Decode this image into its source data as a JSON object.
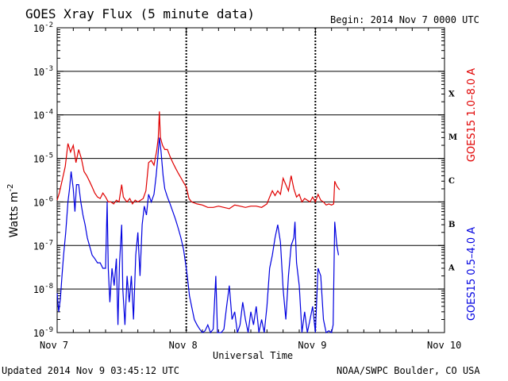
{
  "header": {
    "title": "GOES Xray Flux (5 minute data)",
    "begin": "Begin:  2014 Nov 7 0000 UTC"
  },
  "footer": {
    "updated": "Updated 2014 Nov  9 03:45:12 UTC",
    "credit": "NOAA/SWPC Boulder, CO USA"
  },
  "chart_data": {
    "type": "line",
    "title": "GOES Xray Flux (5 minute data)",
    "xlabel": "Universal Time",
    "ylabel": "Watts m^-2",
    "yscale": "log",
    "ylim": [
      1e-09,
      0.01
    ],
    "x_unit": "hours since 2014 Nov 7 0000 UTC",
    "xlim": [
      0,
      72
    ],
    "x_ticks": [
      "Nov 7",
      "Nov 8",
      "Nov 9",
      "Nov 10"
    ],
    "y_ticks": [
      "10^-9",
      "10^-8",
      "10^-7",
      "10^-6",
      "10^-5",
      "10^-4",
      "10^-3",
      "10^-2"
    ],
    "flare_classes": [
      "A",
      "B",
      "C",
      "M",
      "X"
    ],
    "grid": true,
    "series": [
      {
        "name": "GOES15 1.0–8.0 A",
        "color": "#e00000",
        "points": [
          [
            0.0,
            1.1e-06
          ],
          [
            0.4,
            1.6e-06
          ],
          [
            0.9,
            3e-06
          ],
          [
            1.5,
            6.5e-06
          ],
          [
            2.0,
            2.2e-05
          ],
          [
            2.5,
            1.4e-05
          ],
          [
            3.0,
            2e-05
          ],
          [
            3.5,
            8e-06
          ],
          [
            4.0,
            1.6e-05
          ],
          [
            4.5,
            1e-05
          ],
          [
            5.0,
            5e-06
          ],
          [
            5.5,
            4e-06
          ],
          [
            6.0,
            3e-06
          ],
          [
            6.5,
            2.2e-06
          ],
          [
            7.0,
            1.6e-06
          ],
          [
            7.5,
            1.3e-06
          ],
          [
            8.0,
            1.2e-06
          ],
          [
            8.5,
            1.6e-06
          ],
          [
            9.0,
            1.3e-06
          ],
          [
            9.5,
            1e-06
          ],
          [
            10.0,
            1e-06
          ],
          [
            10.5,
            9e-07
          ],
          [
            11.0,
            1.1e-06
          ],
          [
            11.5,
            1e-06
          ],
          [
            12.0,
            2.5e-06
          ],
          [
            12.3,
            1.3e-06
          ],
          [
            12.7,
            1.1e-06
          ],
          [
            13.0,
            1e-06
          ],
          [
            13.5,
            1.2e-06
          ],
          [
            14.0,
            9e-07
          ],
          [
            14.5,
            1.1e-06
          ],
          [
            15.0,
            1e-06
          ],
          [
            15.5,
            1.1e-06
          ],
          [
            16.0,
            1.2e-06
          ],
          [
            16.5,
            1.8e-06
          ],
          [
            17.0,
            8e-06
          ],
          [
            17.5,
            9e-06
          ],
          [
            18.0,
            7e-06
          ],
          [
            18.5,
            1.5e-05
          ],
          [
            18.8,
            3e-05
          ],
          [
            19.0,
            0.00012
          ],
          [
            19.2,
            3e-05
          ],
          [
            19.6,
            2e-05
          ],
          [
            20.0,
            1.6e-05
          ],
          [
            20.5,
            1.6e-05
          ],
          [
            21.0,
            1.1e-05
          ],
          [
            21.5,
            8e-06
          ],
          [
            22.0,
            6e-06
          ],
          [
            22.5,
            4.6e-06
          ],
          [
            23.0,
            3.6e-06
          ],
          [
            23.5,
            2.8e-06
          ],
          [
            24.0,
            2.2e-06
          ],
          [
            24.5,
            1.2e-06
          ],
          [
            25.0,
            1e-06
          ],
          [
            26.0,
            9e-07
          ],
          [
            27.0,
            8.5e-07
          ],
          [
            28.0,
            7.5e-07
          ],
          [
            29.0,
            7.5e-07
          ],
          [
            30.0,
            8e-07
          ],
          [
            31.0,
            7.5e-07
          ],
          [
            32.0,
            7e-07
          ],
          [
            33.0,
            8.5e-07
          ],
          [
            34.0,
            8e-07
          ],
          [
            35.0,
            7.5e-07
          ],
          [
            36.0,
            8e-07
          ],
          [
            37.0,
            8e-07
          ],
          [
            38.0,
            7.5e-07
          ],
          [
            39.0,
            9e-07
          ],
          [
            39.5,
            1.3e-06
          ],
          [
            40.0,
            1.8e-06
          ],
          [
            40.5,
            1.4e-06
          ],
          [
            41.0,
            1.8e-06
          ],
          [
            41.5,
            1.5e-06
          ],
          [
            42.0,
            3.5e-06
          ],
          [
            42.5,
            2.5e-06
          ],
          [
            43.0,
            1.8e-06
          ],
          [
            43.5,
            4e-06
          ],
          [
            44.0,
            2e-06
          ],
          [
            44.5,
            1.3e-06
          ],
          [
            45.0,
            1.5e-06
          ],
          [
            45.5,
            1e-06
          ],
          [
            46.0,
            1.2e-06
          ],
          [
            46.5,
            1.1e-06
          ],
          [
            47.0,
            1e-06
          ],
          [
            47.5,
            1.3e-06
          ],
          [
            48.0,
            1e-06
          ],
          [
            48.5,
            1.5e-06
          ],
          [
            49.0,
            1.1e-06
          ],
          [
            49.5,
            1e-06
          ],
          [
            50.0,
            8.5e-07
          ],
          [
            50.5,
            9e-07
          ],
          [
            51.0,
            8.5e-07
          ],
          [
            51.4,
            9e-07
          ],
          [
            51.6,
            3e-06
          ],
          [
            52.0,
            2.3e-06
          ],
          [
            52.5,
            1.9e-06
          ]
        ]
      },
      {
        "name": "GOES15 0.5–4.0 A",
        "color": "#0000e0",
        "points": [
          [
            0.0,
            8e-09
          ],
          [
            0.3,
            3e-09
          ],
          [
            0.6,
            6e-09
          ],
          [
            0.9,
            2e-08
          ],
          [
            1.2,
            6e-08
          ],
          [
            1.6,
            2e-07
          ],
          [
            2.0,
            1e-06
          ],
          [
            2.3,
            2e-06
          ],
          [
            2.6,
            5e-06
          ],
          [
            3.0,
            2e-06
          ],
          [
            3.3,
            6e-07
          ],
          [
            3.6,
            2.5e-06
          ],
          [
            4.0,
            2.5e-06
          ],
          [
            4.4,
            1e-06
          ],
          [
            4.8,
            5e-07
          ],
          [
            5.2,
            3e-07
          ],
          [
            5.6,
            1.5e-07
          ],
          [
            6.0,
            1e-07
          ],
          [
            6.5,
            6e-08
          ],
          [
            7.0,
            5e-08
          ],
          [
            7.5,
            4e-08
          ],
          [
            8.0,
            4e-08
          ],
          [
            8.5,
            3e-08
          ],
          [
            9.0,
            3e-08
          ],
          [
            9.3,
            1e-06
          ],
          [
            9.5,
            3e-08
          ],
          [
            9.8,
            5e-09
          ],
          [
            10.2,
            3e-08
          ],
          [
            10.6,
            1.2e-08
          ],
          [
            11.0,
            5e-08
          ],
          [
            11.3,
            1.5e-09
          ],
          [
            11.6,
            4e-08
          ],
          [
            12.0,
            3e-07
          ],
          [
            12.2,
            1e-08
          ],
          [
            12.6,
            1.5e-09
          ],
          [
            13.0,
            2e-08
          ],
          [
            13.4,
            5e-09
          ],
          [
            13.8,
            2e-08
          ],
          [
            14.2,
            2e-09
          ],
          [
            14.6,
            6e-08
          ],
          [
            15.0,
            2e-07
          ],
          [
            15.4,
            2e-08
          ],
          [
            15.8,
            3e-07
          ],
          [
            16.2,
            8e-07
          ],
          [
            16.6,
            5e-07
          ],
          [
            17.0,
            1.5e-06
          ],
          [
            17.5,
            1e-06
          ],
          [
            18.0,
            1.5e-06
          ],
          [
            18.4,
            4e-06
          ],
          [
            18.7,
            1e-05
          ],
          [
            19.0,
            3e-05
          ],
          [
            19.3,
            1.5e-05
          ],
          [
            19.7,
            4e-06
          ],
          [
            20.0,
            2e-06
          ],
          [
            20.5,
            1.3e-06
          ],
          [
            21.0,
            9e-07
          ],
          [
            21.5,
            6e-07
          ],
          [
            22.0,
            4e-07
          ],
          [
            22.5,
            2.5e-07
          ],
          [
            23.0,
            1.5e-07
          ],
          [
            23.5,
            8e-08
          ],
          [
            24.0,
            3e-08
          ],
          [
            24.3,
            1.5e-08
          ],
          [
            24.6,
            7e-09
          ],
          [
            25.0,
            4e-09
          ],
          [
            25.5,
            2e-09
          ],
          [
            26.0,
            1.5e-09
          ],
          [
            26.5,
            1.2e-09
          ],
          [
            27.0,
            1e-09
          ],
          [
            27.5,
            1.1e-09
          ],
          [
            28.0,
            1.5e-09
          ],
          [
            28.5,
            1e-09
          ],
          [
            29.0,
            1.2e-09
          ],
          [
            29.5,
            2e-08
          ],
          [
            29.8,
            1e-09
          ],
          [
            30.5,
            1e-09
          ],
          [
            31.0,
            1.2e-09
          ],
          [
            31.5,
            4e-09
          ],
          [
            32.0,
            1.2e-08
          ],
          [
            32.5,
            2e-09
          ],
          [
            33.0,
            3e-09
          ],
          [
            33.5,
            1e-09
          ],
          [
            34.0,
            1.5e-09
          ],
          [
            34.5,
            5e-09
          ],
          [
            35.0,
            2e-09
          ],
          [
            35.5,
            1e-09
          ],
          [
            36.0,
            3e-09
          ],
          [
            36.5,
            1.5e-09
          ],
          [
            37.0,
            4e-09
          ],
          [
            37.5,
            1e-09
          ],
          [
            38.0,
            2e-09
          ],
          [
            38.5,
            1e-09
          ],
          [
            39.0,
            4e-09
          ],
          [
            39.5,
            3e-08
          ],
          [
            40.0,
            6e-08
          ],
          [
            40.5,
            1.5e-07
          ],
          [
            41.0,
            3e-07
          ],
          [
            41.5,
            1.2e-07
          ],
          [
            42.0,
            1e-08
          ],
          [
            42.5,
            2e-09
          ],
          [
            43.0,
            2e-08
          ],
          [
            43.5,
            1e-07
          ],
          [
            44.0,
            1.5e-07
          ],
          [
            44.2,
            3.5e-07
          ],
          [
            44.5,
            4e-08
          ],
          [
            45.0,
            1.2e-08
          ],
          [
            45.5,
            1e-09
          ],
          [
            46.0,
            3e-09
          ],
          [
            46.5,
            1e-09
          ],
          [
            47.0,
            2e-09
          ],
          [
            47.5,
            4e-09
          ],
          [
            48.0,
            1e-09
          ],
          [
            48.5,
            3e-08
          ],
          [
            49.0,
            2e-08
          ],
          [
            49.5,
            2e-09
          ],
          [
            50.0,
            1e-09
          ],
          [
            50.5,
            1.1e-09
          ],
          [
            51.0,
            1e-09
          ],
          [
            51.3,
            1.5e-09
          ],
          [
            51.6,
            3.5e-07
          ],
          [
            52.0,
            1e-07
          ],
          [
            52.3,
            6e-08
          ]
        ]
      }
    ]
  }
}
